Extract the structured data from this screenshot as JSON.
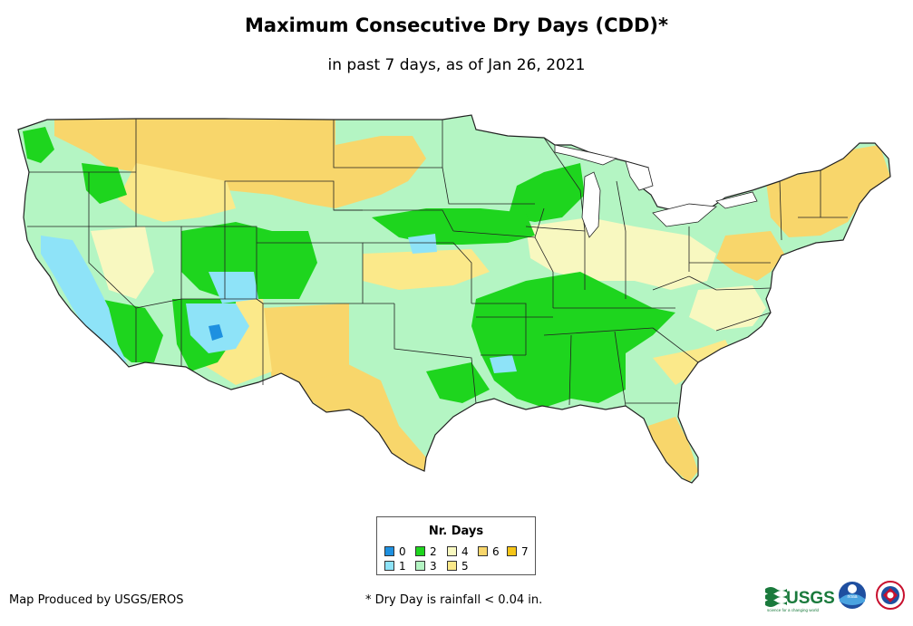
{
  "header": {
    "title": "Maximum Consecutive Dry Days (CDD)*",
    "subtitle": "in past 7 days, as of Jan 26, 2021"
  },
  "legend": {
    "title": "Nr. Days",
    "items": [
      {
        "label": "0",
        "color": "#1e90e0"
      },
      {
        "label": "1",
        "color": "#8ee3f8"
      },
      {
        "label": "2",
        "color": "#1ed51e"
      },
      {
        "label": "3",
        "color": "#b4f5c3"
      },
      {
        "label": "4",
        "color": "#f8f8c0"
      },
      {
        "label": "5",
        "color": "#fbe98a"
      },
      {
        "label": "6",
        "color": "#f8d66b"
      },
      {
        "label": "7",
        "color": "#f5c518"
      }
    ]
  },
  "footer": {
    "credit": "Map Produced by USGS/EROS",
    "footnote": "* Dry Day is rainfall < 0.04 in.",
    "usgs_logo_text": "USGS",
    "usgs_tagline": "science for a changing world",
    "noaa_logo_text": "noaa"
  },
  "colors": {
    "outline": "#222222",
    "base": "#b4f5c3"
  }
}
